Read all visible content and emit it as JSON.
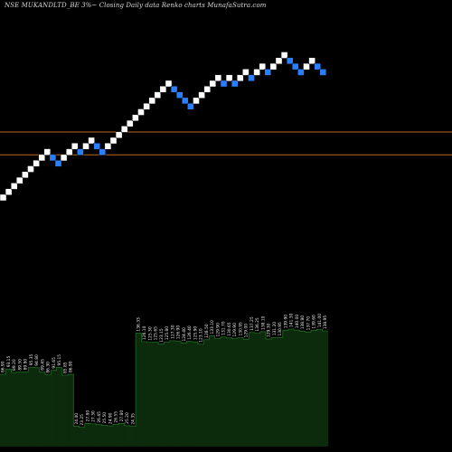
{
  "chart_data": {
    "type": "renko",
    "title": "NSE MUKANDLTD_BE 3%~ Closing Daily data  Renko  charts MunafaSutra.com",
    "colors": {
      "up": "#ffffff",
      "down": "#2a7fff",
      "reference_lines": "#b86a1c",
      "volume": "#0c2a0c",
      "volume_edge": "#1e6a1e"
    },
    "brick_steps": [
      1,
      1,
      1,
      1,
      1,
      1,
      1,
      1,
      -1,
      -1,
      1,
      1,
      1,
      -1,
      1,
      1,
      -1,
      -1,
      1,
      1,
      1,
      1,
      1,
      1,
      1,
      1,
      1,
      1,
      1,
      1,
      -1,
      -1,
      -1,
      -1,
      1,
      1,
      1,
      1,
      1,
      -1,
      1,
      -1,
      1,
      1,
      -1,
      1,
      1,
      -1,
      1,
      1,
      1,
      -1,
      -1,
      -1,
      1,
      1,
      -1,
      -1
    ],
    "reference_line_levels": [
      11.5,
      7.5
    ],
    "volume_labels": [
      "86.90",
      "93.15",
      "89.20",
      "89.50",
      "89.80",
      "95.35",
      "94.80",
      "89.45",
      "86.30",
      "91.65",
      "95.15",
      "85.85",
      "86.90",
      "24.40",
      "23.25",
      "27.80",
      "27.30",
      "26.45",
      "25.50",
      "24.90",
      "26.55",
      "27.80",
      "25.20",
      "24.35",
      "136.33",
      "126.10",
      "125.30",
      "125.65",
      "123.15",
      "125.80",
      "127.30",
      "126.90",
      "124.40",
      "126.40",
      "125.90",
      "123.10",
      "128.50",
      "133.10",
      "129.90",
      "131.70",
      "130.65",
      "129.90",
      "130.95",
      "129.00",
      "137.25",
      "136.25",
      "138.10",
      "129.30",
      "131.20",
      "130.95",
      "139.90",
      "141.30",
      "140.00",
      "138.80",
      "137.70",
      "139.60",
      "141.00",
      "138.95"
    ]
  }
}
